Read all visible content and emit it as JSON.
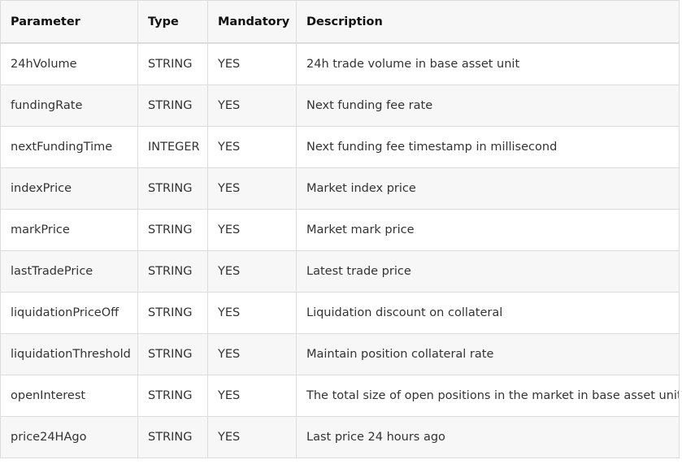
{
  "table": {
    "headers": [
      "Parameter",
      "Type",
      "Mandatory",
      "Description"
    ],
    "rows": [
      [
        "24hVolume",
        "STRING",
        "YES",
        "24h trade volume in base asset unit"
      ],
      [
        "fundingRate",
        "STRING",
        "YES",
        "Next funding fee rate"
      ],
      [
        "nextFundingTime",
        "INTEGER",
        "YES",
        "Next funding fee timestamp in millisecond"
      ],
      [
        "indexPrice",
        "STRING",
        "YES",
        "Market index price"
      ],
      [
        "markPrice",
        "STRING",
        "YES",
        "Market mark price"
      ],
      [
        "lastTradePrice",
        "STRING",
        "YES",
        "Latest trade price"
      ],
      [
        "liquidationPriceOff",
        "STRING",
        "YES",
        "Liquidation discount on collateral"
      ],
      [
        "liquidationThreshold",
        "STRING",
        "YES",
        "Maintain position collateral rate"
      ],
      [
        "openInterest",
        "STRING",
        "YES",
        "The total size of open positions in the market in base asset unit"
      ],
      [
        "price24HAgo",
        "STRING",
        "YES",
        "Last price 24 hours ago"
      ]
    ]
  }
}
